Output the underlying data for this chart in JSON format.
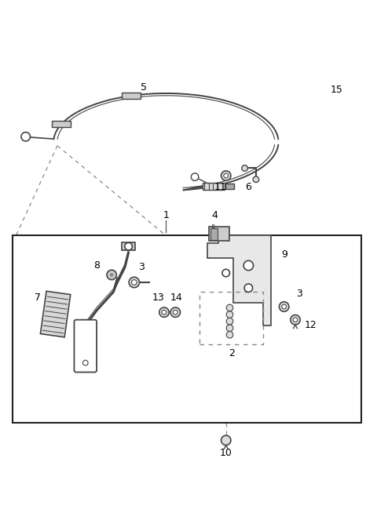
{
  "bg_color": "#ffffff",
  "line_color": "#444444",
  "dashed_color": "#888888",
  "figsize": [
    4.8,
    6.77
  ],
  "dpi": 100
}
